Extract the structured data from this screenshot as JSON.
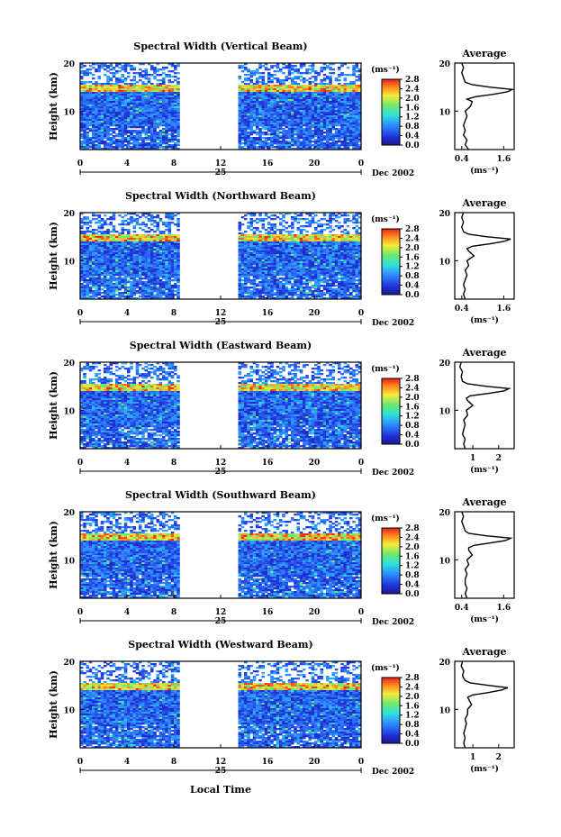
{
  "figure": {
    "xlabel": "Local Time",
    "ylabel": "Height (km)",
    "date_label": "Dec 2002",
    "day_label": "25",
    "avg_title": "Average",
    "colorbar_unit": "(ms⁻¹)",
    "avg_xunit": "(ms⁻¹)"
  },
  "chart_data": [
    {
      "type": "heatmap",
      "title": "Spectral Width (Vertical Beam)",
      "x_ticks": [
        "0",
        "4",
        "8",
        "12",
        "16",
        "20",
        "0"
      ],
      "xlim": [
        0,
        24
      ],
      "y_ticks": [
        "20",
        "10"
      ],
      "ylim": [
        2,
        20
      ],
      "colorbar": {
        "min": 0.0,
        "max": 2.8,
        "ticks": [
          "2.8",
          "2.4",
          "2.0",
          "1.6",
          "1.2",
          "0.8",
          "0.4",
          "0.0"
        ]
      },
      "data_gaps_hours": [
        [
          8.5,
          13.5
        ],
        [
          18.9,
          19.1
        ],
        [
          19.4,
          19.6
        ]
      ],
      "peak_layer_km": [
        14,
        15.5
      ],
      "average_profile": {
        "x_ticks": [
          "0.4",
          "1.6"
        ],
        "xlim": [
          0.2,
          1.9
        ],
        "height": [
          2,
          3,
          4,
          5,
          6,
          7,
          8,
          9,
          10,
          11,
          12,
          12.5,
          13,
          13.5,
          14,
          14.5,
          15,
          15.5,
          16,
          17,
          18,
          19,
          20
        ],
        "value": [
          0.6,
          0.5,
          0.55,
          0.45,
          0.5,
          0.45,
          0.5,
          0.55,
          0.5,
          0.65,
          0.7,
          0.55,
          0.8,
          1.3,
          1.7,
          1.85,
          1.2,
          0.7,
          0.5,
          0.45,
          0.4,
          0.45,
          0.4
        ]
      }
    },
    {
      "type": "heatmap",
      "title": "Spectral Width (Northward Beam)",
      "x_ticks": [
        "0",
        "4",
        "8",
        "12",
        "16",
        "20",
        "0"
      ],
      "xlim": [
        0,
        24
      ],
      "y_ticks": [
        "20",
        "10"
      ],
      "ylim": [
        2,
        20
      ],
      "colorbar": {
        "min": 0.0,
        "max": 2.8,
        "ticks": [
          "2.8",
          "2.4",
          "2.0",
          "1.6",
          "1.2",
          "0.8",
          "0.4",
          "0.0"
        ]
      },
      "data_gaps_hours": [
        [
          8.5,
          13.5
        ],
        [
          18.9,
          19.1
        ]
      ],
      "peak_layer_km": [
        14,
        15.5
      ],
      "average_profile": {
        "x_ticks": [
          "0.4",
          "1.6"
        ],
        "xlim": [
          0.2,
          1.9
        ],
        "height": [
          2,
          3,
          4,
          5,
          6,
          7,
          8,
          9,
          10,
          11,
          12,
          12.5,
          13,
          13.5,
          14,
          14.5,
          15,
          15.5,
          16,
          17,
          18,
          19,
          20
        ],
        "value": [
          0.5,
          0.45,
          0.5,
          0.45,
          0.5,
          0.55,
          0.5,
          0.6,
          0.55,
          0.75,
          0.6,
          0.55,
          0.7,
          1.2,
          1.6,
          1.8,
          1.1,
          0.6,
          0.45,
          0.4,
          0.45,
          0.4,
          0.45
        ]
      }
    },
    {
      "type": "heatmap",
      "title": "Spectral Width (Eastward Beam)",
      "x_ticks": [
        "0",
        "4",
        "8",
        "12",
        "16",
        "20",
        "0"
      ],
      "xlim": [
        0,
        24
      ],
      "y_ticks": [
        "20",
        "10"
      ],
      "ylim": [
        2,
        20
      ],
      "colorbar": {
        "min": 0.0,
        "max": 2.8,
        "ticks": [
          "2.8",
          "2.4",
          "2.0",
          "1.6",
          "1.2",
          "0.8",
          "0.4",
          "0.0"
        ]
      },
      "data_gaps_hours": [
        [
          8.5,
          13.5
        ],
        [
          18.9,
          19.1
        ]
      ],
      "peak_layer_km": [
        14,
        15.5
      ],
      "average_profile": {
        "x_ticks": [
          "1",
          "2"
        ],
        "xlim": [
          0.3,
          2.6
        ],
        "height": [
          2,
          3,
          4,
          5,
          6,
          7,
          8,
          9,
          10,
          11,
          12,
          12.5,
          13,
          13.5,
          14,
          14.5,
          15,
          15.5,
          16,
          17,
          18,
          19,
          20
        ],
        "value": [
          0.7,
          0.65,
          0.7,
          0.6,
          0.65,
          0.7,
          0.65,
          0.8,
          0.75,
          1.0,
          0.8,
          0.75,
          0.9,
          1.6,
          2.2,
          2.4,
          1.5,
          0.8,
          0.6,
          0.55,
          0.6,
          0.5,
          0.55
        ]
      }
    },
    {
      "type": "heatmap",
      "title": "Spectral Width (Southward Beam)",
      "x_ticks": [
        "0",
        "4",
        "8",
        "12",
        "16",
        "20",
        "0"
      ],
      "xlim": [
        0,
        24
      ],
      "y_ticks": [
        "20",
        "10"
      ],
      "ylim": [
        2,
        20
      ],
      "colorbar": {
        "min": 0.0,
        "max": 2.8,
        "ticks": [
          "2.8",
          "2.4",
          "2.0",
          "1.6",
          "1.2",
          "0.8",
          "0.4",
          "0.0"
        ]
      },
      "data_gaps_hours": [
        [
          8.5,
          13.5
        ],
        [
          17.9,
          18.1
        ],
        [
          18.9,
          19.1
        ]
      ],
      "peak_layer_km": [
        14,
        15.5
      ],
      "average_profile": {
        "x_ticks": [
          "0.4",
          "1.6"
        ],
        "xlim": [
          0.2,
          1.9
        ],
        "height": [
          2,
          3,
          4,
          5,
          6,
          7,
          8,
          9,
          10,
          11,
          12,
          12.5,
          13,
          13.5,
          14,
          14.5,
          15,
          15.5,
          16,
          17,
          18,
          19,
          20
        ],
        "value": [
          0.55,
          0.5,
          0.55,
          0.5,
          0.5,
          0.55,
          0.5,
          0.6,
          0.55,
          0.7,
          0.6,
          0.6,
          0.75,
          1.2,
          1.65,
          1.8,
          1.1,
          0.6,
          0.5,
          0.45,
          0.4,
          0.45,
          0.4
        ]
      }
    },
    {
      "type": "heatmap",
      "title": "Spectral Width (Westward Beam)",
      "x_ticks": [
        "0",
        "4",
        "8",
        "12",
        "16",
        "20",
        "0"
      ],
      "xlim": [
        0,
        24
      ],
      "y_ticks": [
        "20",
        "10"
      ],
      "ylim": [
        2,
        20
      ],
      "colorbar": {
        "min": 0.0,
        "max": 2.8,
        "ticks": [
          "2.8",
          "2.4",
          "2.0",
          "1.6",
          "1.2",
          "0.8",
          "0.4",
          "0.0"
        ]
      },
      "data_gaps_hours": [
        [
          8.5,
          13.5
        ],
        [
          18.9,
          19.1
        ],
        [
          19.4,
          19.6
        ]
      ],
      "peak_layer_km": [
        14,
        15.5
      ],
      "average_profile": {
        "x_ticks": [
          "1",
          "2"
        ],
        "xlim": [
          0.3,
          2.6
        ],
        "height": [
          2,
          3,
          4,
          5,
          6,
          7,
          8,
          9,
          10,
          11,
          12,
          12.5,
          13,
          13.5,
          14,
          14.5,
          15,
          15.5,
          16,
          17,
          18,
          19,
          20
        ],
        "value": [
          0.7,
          0.65,
          0.7,
          0.65,
          0.7,
          0.75,
          0.7,
          0.8,
          0.8,
          0.95,
          0.85,
          0.8,
          1.0,
          1.6,
          2.1,
          2.35,
          1.6,
          0.9,
          0.7,
          0.6,
          0.65,
          0.55,
          0.6
        ]
      }
    }
  ]
}
